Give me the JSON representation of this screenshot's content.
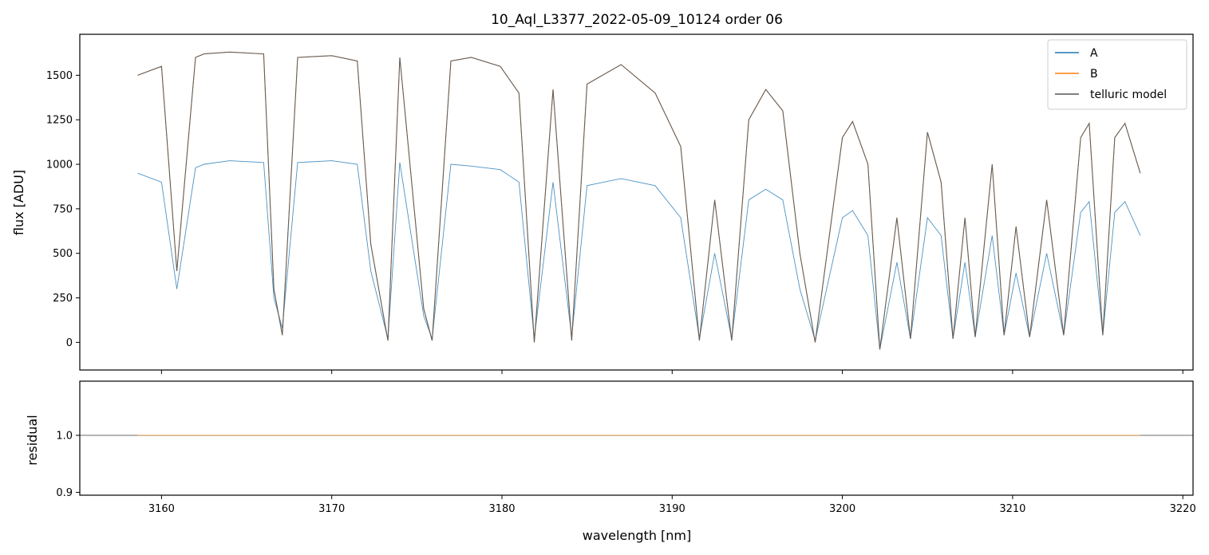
{
  "chart_data": [
    {
      "type": "line",
      "title": "10_Aql_L3377_2022-05-09_10124  order 06",
      "xlabel": "",
      "ylabel": "flux [ADU]",
      "xlim": [
        3155.2,
        3220.6
      ],
      "ylim": [
        -155,
        1730
      ],
      "yticks": [
        0,
        250,
        500,
        750,
        1000,
        1250,
        1500
      ],
      "xticks": [
        3160,
        3170,
        3180,
        3190,
        3200,
        3210,
        3220
      ],
      "legend": {
        "placement": "top-right"
      },
      "series": [
        {
          "name": "A",
          "color": "#1f77b4",
          "x": [
            3158.6,
            3160.0,
            3160.9,
            3162.0,
            3162.5,
            3164.0,
            3166.0,
            3166.6,
            3167.1,
            3168.0,
            3170.0,
            3171.5,
            3172.3,
            3173.3,
            3174.0,
            3175.4,
            3175.9,
            3177.0,
            3178.2,
            3179.9,
            3181.0,
            3181.9,
            3183.0,
            3184.1,
            3185.0,
            3187.0,
            3189.0,
            3190.5,
            3191.6,
            3192.5,
            3193.5,
            3194.5,
            3195.5,
            3196.5,
            3197.5,
            3198.4,
            3200.0,
            3200.6,
            3201.5,
            3202.2,
            3203.2,
            3204.0,
            3205.0,
            3205.8,
            3206.5,
            3207.2,
            3207.8,
            3208.8,
            3209.5,
            3210.2,
            3211.0,
            3212.0,
            3213.0,
            3214.0,
            3214.5,
            3215.3,
            3216.0,
            3216.6,
            3217.5
          ],
          "y": [
            950,
            900,
            300,
            980,
            1000,
            1020,
            1010,
            250,
            80,
            1010,
            1020,
            1000,
            400,
            20,
            1010,
            150,
            20,
            1000,
            990,
            970,
            900,
            20,
            900,
            30,
            880,
            920,
            880,
            700,
            20,
            500,
            20,
            800,
            860,
            800,
            300,
            10,
            700,
            740,
            600,
            -40,
            450,
            20,
            700,
            600,
            20,
            450,
            30,
            600,
            40,
            390,
            30,
            500,
            40,
            730,
            790,
            40,
            730,
            790,
            600
          ]
        },
        {
          "name": "B",
          "color": "#ff7f0e",
          "x": [
            3158.6,
            3160.0,
            3160.9,
            3162.0,
            3162.5,
            3164.0,
            3166.0,
            3166.6,
            3167.1,
            3168.0,
            3170.0,
            3171.5,
            3172.3,
            3173.3,
            3174.0,
            3175.4,
            3175.9,
            3177.0,
            3178.2,
            3179.9,
            3181.0,
            3181.9,
            3183.0,
            3184.1,
            3185.0,
            3187.0,
            3189.0,
            3190.5,
            3191.6,
            3192.5,
            3193.5,
            3194.5,
            3195.5,
            3196.5,
            3197.5,
            3198.4,
            3200.0,
            3200.6,
            3201.5,
            3202.2,
            3203.2,
            3204.0,
            3205.0,
            3205.8,
            3206.5,
            3207.2,
            3207.8,
            3208.8,
            3209.5,
            3210.2,
            3211.0,
            3212.0,
            3213.0,
            3214.0,
            3214.5,
            3215.3,
            3216.0,
            3216.6,
            3217.5
          ],
          "y": [
            1500,
            1550,
            400,
            1600,
            1620,
            1630,
            1620,
            300,
            40,
            1600,
            1610,
            1580,
            550,
            10,
            1600,
            190,
            10,
            1580,
            1600,
            1550,
            1400,
            0,
            1420,
            10,
            1450,
            1560,
            1400,
            1100,
            10,
            800,
            10,
            1250,
            1420,
            1300,
            500,
            0,
            1150,
            1240,
            1000,
            -40,
            700,
            20,
            1180,
            900,
            20,
            700,
            30,
            1000,
            40,
            650,
            30,
            800,
            40,
            1150,
            1230,
            40,
            1150,
            1230,
            950
          ]
        },
        {
          "name": "telluric model",
          "color": "#555555",
          "x": [
            3158.6,
            3160.0,
            3160.9,
            3162.0,
            3162.5,
            3164.0,
            3166.0,
            3166.6,
            3167.1,
            3168.0,
            3170.0,
            3171.5,
            3172.3,
            3173.3,
            3174.0,
            3175.4,
            3175.9,
            3177.0,
            3178.2,
            3179.9,
            3181.0,
            3181.9,
            3183.0,
            3184.1,
            3185.0,
            3187.0,
            3189.0,
            3190.5,
            3191.6,
            3192.5,
            3193.5,
            3194.5,
            3195.5,
            3196.5,
            3197.5,
            3198.4,
            3200.0,
            3200.6,
            3201.5,
            3202.2,
            3203.2,
            3204.0,
            3205.0,
            3205.8,
            3206.5,
            3207.2,
            3207.8,
            3208.8,
            3209.5,
            3210.2,
            3211.0,
            3212.0,
            3213.0,
            3214.0,
            3214.5,
            3215.3,
            3216.0,
            3216.6,
            3217.5
          ],
          "y": [
            1500,
            1550,
            400,
            1600,
            1620,
            1630,
            1620,
            300,
            40,
            1600,
            1610,
            1580,
            550,
            10,
            1600,
            190,
            10,
            1580,
            1600,
            1550,
            1400,
            0,
            1420,
            10,
            1450,
            1560,
            1400,
            1100,
            10,
            800,
            10,
            1250,
            1420,
            1300,
            500,
            0,
            1150,
            1240,
            1000,
            -40,
            700,
            20,
            1180,
            900,
            20,
            700,
            30,
            1000,
            40,
            650,
            30,
            800,
            40,
            1150,
            1230,
            40,
            1150,
            1230,
            950
          ]
        }
      ]
    },
    {
      "type": "line",
      "title": "",
      "xlabel": "wavelength [nm]",
      "ylabel": "residual",
      "xlim": [
        3155.2,
        3220.6
      ],
      "ylim": [
        0.895,
        1.095
      ],
      "yticks": [
        0.9,
        1.0
      ],
      "xticks": [
        3160,
        3170,
        3180,
        3190,
        3200,
        3210,
        3220
      ],
      "reference_line": 1.0,
      "series": [
        {
          "name": "A",
          "color": "#1f77b4",
          "x": [
            3158.6,
            3178.2,
            3179.9,
            3198.4,
            3200.0,
            3217.5
          ],
          "y": [
            1.0,
            1.0,
            1.0,
            1.0,
            1.0,
            1.0
          ]
        },
        {
          "name": "B",
          "color": "#ff7f0e",
          "x": [
            3158.6,
            3178.2,
            3179.9,
            3198.4,
            3200.0,
            3217.5
          ],
          "y": [
            1.0,
            1.0,
            1.0,
            1.0,
            1.0,
            1.0
          ]
        }
      ]
    }
  ],
  "tick_labels": {
    "x": [
      "3160",
      "3170",
      "3180",
      "3190",
      "3200",
      "3210",
      "3220"
    ],
    "top_y": [
      "0",
      "250",
      "500",
      "750",
      "1000",
      "1250",
      "1500"
    ],
    "bottom_y": [
      "0.9",
      "1.0"
    ]
  },
  "legend_labels": [
    "A",
    "B",
    "telluric model"
  ]
}
